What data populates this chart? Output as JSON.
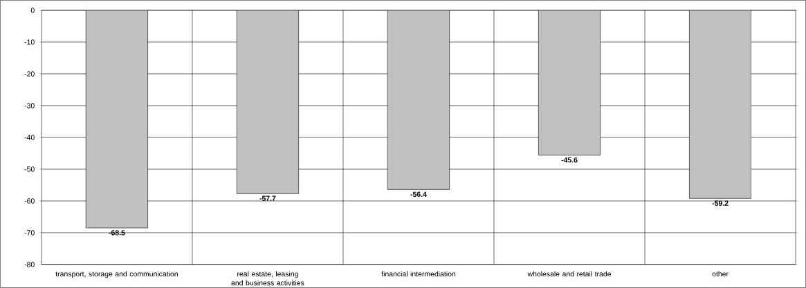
{
  "chart_data": {
    "type": "bar",
    "categories": [
      "transport, storage and communication",
      "real estate, leasing and business activities",
      "financial intermediation",
      "wholesale and retail trade",
      "other"
    ],
    "values": [
      -68.5,
      -57.7,
      -56.4,
      -45.6,
      -59.2
    ],
    "color": "#c0c0c0",
    "ylim": [
      -80,
      0
    ],
    "yticks": [
      0,
      -10,
      -20,
      -30,
      -40,
      -50,
      -60,
      -70,
      -80
    ],
    "grid": true,
    "data_labels": true
  }
}
